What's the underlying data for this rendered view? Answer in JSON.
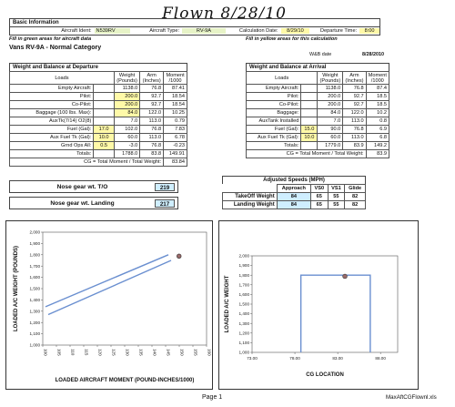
{
  "handwritten": "Flown 8/28/10",
  "basic_info": {
    "title": "Basic Information",
    "fields": [
      {
        "label": "Aircraft Ident:",
        "value": "N539RV"
      },
      {
        "label": "Aircraft Type:",
        "value": "RV-9A"
      },
      {
        "label": "Calculation Date:",
        "value": "8/29/10"
      },
      {
        "label": "Departure Time:",
        "value": "8:00"
      }
    ],
    "note_green": "Fill in green areas for aircraft data",
    "note_yellow": "Fill in yellow areas for this calculation",
    "category": "Vans RV-9A  -  Normal Category",
    "wb_date_label": "W&B date",
    "wb_date": "8/28/2010"
  },
  "departure": {
    "title": "Weight and Balance at Departure",
    "headers": [
      "Loads",
      "Weight (Pounds)",
      "Arm (Inches)",
      "Moment /1000"
    ],
    "rows": [
      {
        "label": "Empty Aircraft:",
        "qty": "",
        "weight": "1138.0",
        "arm": "76.8",
        "moment": "87.41"
      },
      {
        "label": "Pilot:",
        "qty": "",
        "weight": "200.0",
        "arm": "92.7",
        "moment": "18.54"
      },
      {
        "label": "Co-Pilot:",
        "qty": "",
        "weight": "200.0",
        "arm": "92.7",
        "moment": "18.54"
      },
      {
        "label": "Baggage (100 lbs. Max):",
        "qty": "",
        "weight": "84.0",
        "arm": "122.0",
        "moment": "10.25"
      },
      {
        "label": "AuxTk(7/14)   O2(8)",
        "qty": "",
        "weight": "7.0",
        "arm": "113.0",
        "moment": "0.79"
      },
      {
        "label": "Fuel (Gal):",
        "qty": "17.0",
        "weight": "102.0",
        "arm": "76.8",
        "moment": "7.83"
      },
      {
        "label": "Aux Fuel Tk (Gal):",
        "qty": "10.0",
        "weight": "60.0",
        "arm": "113.0",
        "moment": "6.78"
      },
      {
        "label": "Grnd Ops All:",
        "qty": "0.5",
        "weight": "-3.0",
        "arm": "76.8",
        "moment": "-0.23"
      },
      {
        "label": "Totals:",
        "qty": "",
        "weight": "1788.0",
        "arm": "83.8",
        "moment": "149.91"
      }
    ],
    "cg_label": "CG = Total Moment / Total Weight:",
    "cg_value": "83.84"
  },
  "arrival": {
    "title": "Weight and Balance at Arrival",
    "headers": [
      "Loads",
      "Weight (Pounds)",
      "Arm (Inches)",
      "Moment /1000"
    ],
    "rows": [
      {
        "label": "Empty Aircraft:",
        "qty": "",
        "weight": "1138.0",
        "arm": "76.8",
        "moment": "87.4"
      },
      {
        "label": "Pilot:",
        "qty": "",
        "weight": "200.0",
        "arm": "92.7",
        "moment": "18.5"
      },
      {
        "label": "Co-Pilot:",
        "qty": "",
        "weight": "200.0",
        "arm": "92.7",
        "moment": "18.5"
      },
      {
        "label": "Baggage:",
        "qty": "",
        "weight": "84.0",
        "arm": "122.0",
        "moment": "10.2"
      },
      {
        "label": "AuxTank Installed",
        "qty": "",
        "weight": "7.0",
        "arm": "113.0",
        "moment": "0.8"
      },
      {
        "label": "Fuel (Gal):",
        "qty": "15.0",
        "weight": "90.0",
        "arm": "76.8",
        "moment": "6.9"
      },
      {
        "label": "Aux Fuel Tk (Gal):",
        "qty": "10.0",
        "weight": "60.0",
        "arm": "113.0",
        "moment": "6.8"
      },
      {
        "label": "Totals:",
        "qty": "",
        "weight": "1779.0",
        "arm": "83.9",
        "moment": "149.2"
      }
    ],
    "cg_label": "CG = Total Moment / Total Weight:",
    "cg_value": "83.9"
  },
  "nose_gear": [
    {
      "label": "Nose gear wt. T/O",
      "value": "219"
    },
    {
      "label": "Nose gear wt. Landing",
      "value": "217"
    }
  ],
  "speeds": {
    "title": "Adjusted Speeds (MPH)",
    "headers": [
      "",
      "Approach",
      "VS0",
      "VS1",
      "Glide"
    ],
    "rows": [
      {
        "label": "TakeOff Weight",
        "values": [
          "84",
          "65",
          "55",
          "82"
        ]
      },
      {
        "label": "Landing Weight",
        "values": [
          "84",
          "65",
          "55",
          "82"
        ]
      }
    ]
  },
  "chart_data": [
    {
      "type": "line",
      "title": "",
      "xlabel": "LOADED AIRCRAFT MOMENT (POUND-INCHES/1000)",
      "ylabel": "LOADED A/C WEIGHT (POUNDS)",
      "xlim": [
        100,
        160
      ],
      "ylim": [
        1000,
        2000
      ],
      "x_ticks": [
        "100",
        "105",
        "110",
        "115",
        "120",
        "125",
        "130",
        "135",
        "140",
        "145",
        "150",
        "155",
        "160"
      ],
      "y_ticks": [
        "1,000",
        "1,100",
        "1,200",
        "1,300",
        "1,400",
        "1,500",
        "1,600",
        "1,700",
        "1,800",
        "1,900",
        "2,000"
      ],
      "grid": false,
      "series": [
        {
          "values": [
            [
              101,
              1340
            ],
            [
              146,
              1800
            ]
          ]
        },
        {
          "values": [
            [
              102,
              1270
            ],
            [
              147,
              1750
            ]
          ]
        }
      ],
      "points": [
        {
          "x": 149.91,
          "y": 1788
        }
      ]
    },
    {
      "type": "line",
      "title": "",
      "xlabel": "CG LOCATION",
      "ylabel": "LOADED A/C WEIGHT",
      "xlim": [
        73,
        90
      ],
      "ylim": [
        1000,
        2000
      ],
      "x_ticks": [
        "73.00",
        "78.00",
        "83.00",
        "88.00"
      ],
      "y_ticks": [
        "1,000",
        "1,100",
        "1,200",
        "1,300",
        "1,400",
        "1,500",
        "1,600",
        "1,700",
        "1,800",
        "1,900",
        "2,000"
      ],
      "grid": false,
      "series": [
        {
          "values": [
            [
              78.7,
              1000
            ],
            [
              78.7,
              1800
            ],
            [
              86.8,
              1800
            ],
            [
              86.8,
              1000
            ]
          ]
        }
      ],
      "points": [
        {
          "x": 83.84,
          "y": 1788
        }
      ]
    }
  ],
  "footer": {
    "page": "Page 1",
    "file": "MaxAftCGFlownl.xls"
  }
}
